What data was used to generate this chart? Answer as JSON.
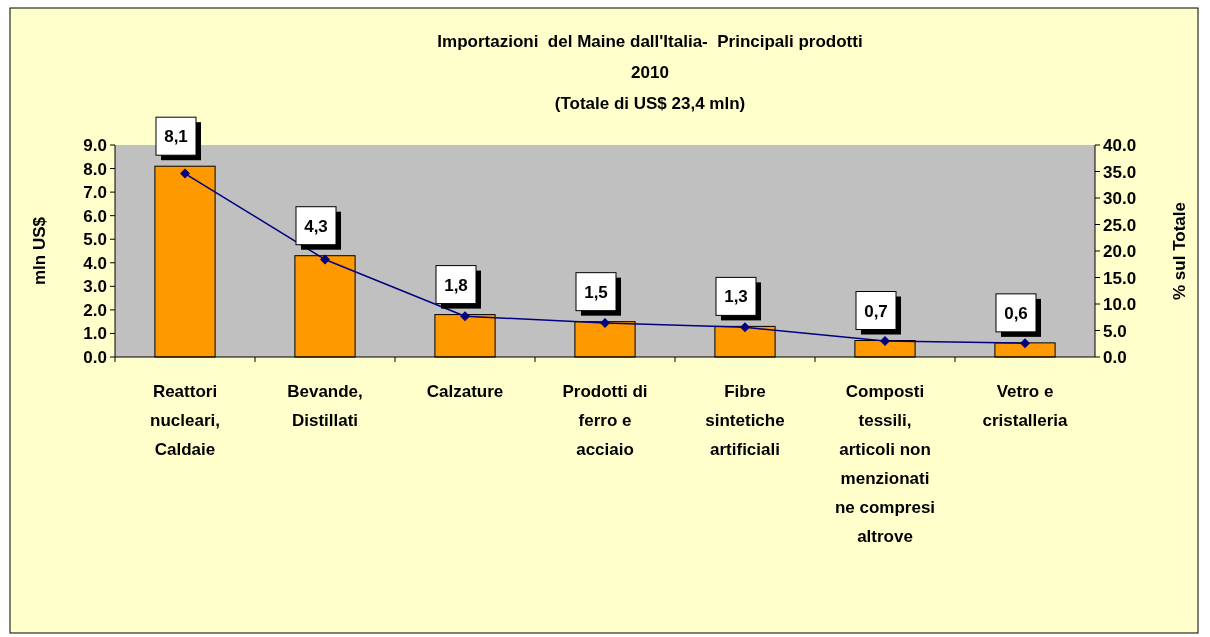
{
  "chart_data": {
    "type": "bar",
    "title": "Importazioni  del Maine dall'Italia-  Principali prodotti",
    "subtitle": "2010\n(Totale di US$ 23,4 mln)",
    "ylabel": "mln US$",
    "y2label": "% sul Totale",
    "categories": [
      "Reattori nucleari, Caldaie",
      "Bevande, Distillati",
      "Calzature",
      "Prodotti di ferro e acciaio",
      "Fibre sintetiche artificiali",
      "Composti tessili, articoli non menzionati ne compresi altrove",
      "Vetro e cristalleria"
    ],
    "series": [
      {
        "color": "#ff9900",
        "values": [
          8.1,
          4.3,
          1.8,
          1.5,
          1.3,
          0.7,
          0.6
        ],
        "value_labels": [
          "8,1",
          "4,3",
          "1,8",
          "1,5",
          "1,3",
          "0,7",
          "0,6"
        ]
      },
      {
        "type": "line",
        "axis": "y2",
        "color": "#000080",
        "marker": "diamond",
        "values": [
          34.6,
          18.4,
          7.7,
          6.4,
          5.6,
          3.0,
          2.6
        ]
      }
    ],
    "ylim": [
      0,
      9
    ],
    "yticks": [
      {
        "value": 0,
        "label": "0.0"
      },
      {
        "value": 1,
        "label": "1.0"
      },
      {
        "value": 2,
        "label": "2.0"
      },
      {
        "value": 3,
        "label": "3.0"
      },
      {
        "value": 4,
        "label": "4.0"
      },
      {
        "value": 5,
        "label": "5.0"
      },
      {
        "value": 6,
        "label": "6.0"
      },
      {
        "value": 7,
        "label": "7.0"
      },
      {
        "value": 8,
        "label": "8.0"
      },
      {
        "value": 9,
        "label": "9.0"
      }
    ],
    "y2lim": [
      0,
      40
    ],
    "y2ticks": [
      {
        "value": 0,
        "label": "0.0"
      },
      {
        "value": 5,
        "label": "5.0"
      },
      {
        "value": 10,
        "label": "10.0"
      },
      {
        "value": 15,
        "label": "15.0"
      },
      {
        "value": 20,
        "label": "20.0"
      },
      {
        "value": 25,
        "label": "25.0"
      },
      {
        "value": 30,
        "label": "30.0"
      },
      {
        "value": 35,
        "label": "35.0"
      },
      {
        "value": 40,
        "label": "40.0"
      }
    ],
    "grid": false
  }
}
